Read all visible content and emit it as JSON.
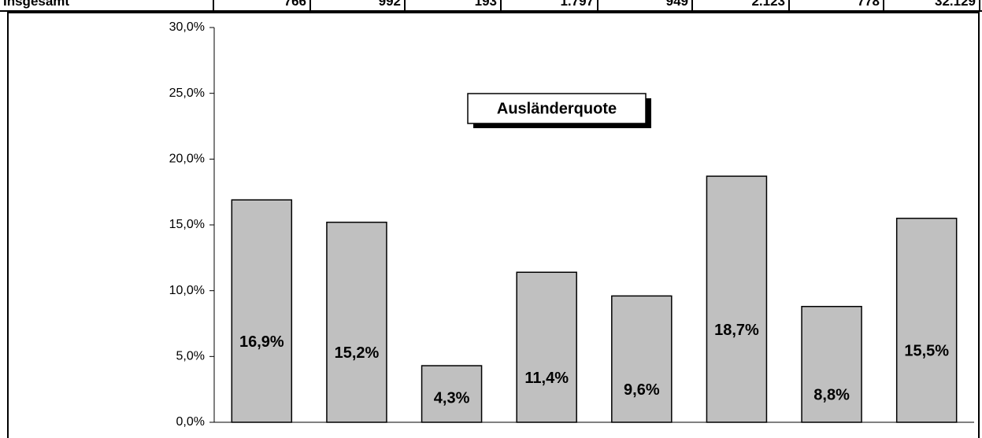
{
  "table": {
    "row": [
      "Insgesamt",
      "766",
      "992",
      "193",
      "1.797",
      "949",
      "2.123",
      "778",
      "32.129"
    ]
  },
  "chart_data": {
    "type": "bar",
    "title": "Ausländerquote",
    "categories": [
      null,
      null,
      null,
      null,
      null,
      null,
      null,
      null
    ],
    "values": [
      16.9,
      15.2,
      4.3,
      11.4,
      9.6,
      18.7,
      8.8,
      15.5
    ],
    "value_labels": [
      "16,9%",
      "15,2%",
      "4,3%",
      "11,4%",
      "9,6%",
      "18,7%",
      "8,8%",
      "15,5%"
    ],
    "color": "#c0c0c0",
    "ylim": [
      0,
      30
    ],
    "yticks": [
      {
        "value": 0,
        "label": "0,0%"
      },
      {
        "value": 5,
        "label": "5,0%"
      },
      {
        "value": 10,
        "label": "10,0%"
      },
      {
        "value": 15,
        "label": "15,0%"
      },
      {
        "value": 20,
        "label": "20,0%"
      },
      {
        "value": 25,
        "label": "25,0%"
      },
      {
        "value": 30,
        "label": "30,0%"
      }
    ]
  }
}
